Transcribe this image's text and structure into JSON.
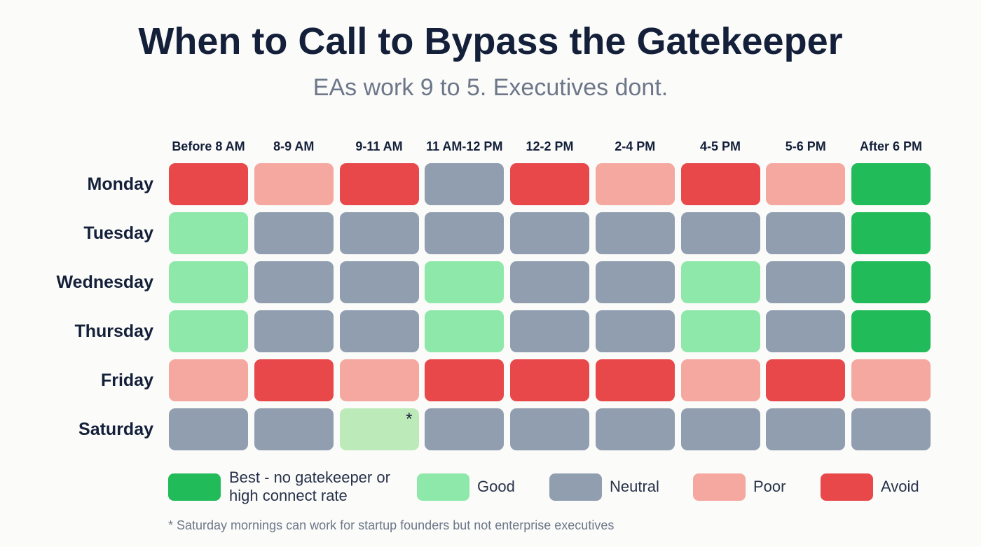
{
  "title": "When to Call to Bypass the Gatekeeper",
  "subtitle": "EAs work 9 to 5. Executives dont.",
  "columns": [
    "Before 8 AM",
    "8-9 AM",
    "9-11 AM",
    "11 AM-12 PM",
    "12-2 PM",
    "2-4 PM",
    "4-5 PM",
    "5-6 PM",
    "After 6 PM"
  ],
  "rows": [
    {
      "label": "Monday",
      "cells": [
        "#e8484a",
        "#f5a8a0",
        "#e8484a",
        "#909eb0",
        "#e8484a",
        "#f5a8a0",
        "#e8484a",
        "#f5a8a0",
        "#22bb5a"
      ]
    },
    {
      "label": "Tuesday",
      "cells": [
        "#8ee8aa",
        "#909eb0",
        "#909eb0",
        "#909eb0",
        "#909eb0",
        "#909eb0",
        "#909eb0",
        "#909eb0",
        "#22bb5a"
      ]
    },
    {
      "label": "Wednesday",
      "cells": [
        "#8ee8aa",
        "#909eb0",
        "#909eb0",
        "#8ee8aa",
        "#909eb0",
        "#909eb0",
        "#8ee8aa",
        "#909eb0",
        "#22bb5a"
      ]
    },
    {
      "label": "Thursday",
      "cells": [
        "#8ee8aa",
        "#909eb0",
        "#909eb0",
        "#8ee8aa",
        "#909eb0",
        "#909eb0",
        "#8ee8aa",
        "#909eb0",
        "#22bb5a"
      ]
    },
    {
      "label": "Friday",
      "cells": [
        "#f5a8a0",
        "#e8484a",
        "#f5a8a0",
        "#e8484a",
        "#e8484a",
        "#e8484a",
        "#f5a8a0",
        "#e8484a",
        "#f5a8a0"
      ]
    },
    {
      "label": "Saturday",
      "cells": [
        "#909eb0",
        "#909eb0",
        {
          "color": "#bdeab9",
          "note": "*"
        },
        "#909eb0",
        "#909eb0",
        "#909eb0",
        "#909eb0",
        "#909eb0",
        "#909eb0"
      ]
    }
  ],
  "legend": [
    {
      "name": "Best - no gatekeeper or high connect rate",
      "color": "#22bb5a"
    },
    {
      "name": "Good",
      "color": "#8ee8aa"
    },
    {
      "name": "Neutral",
      "color": "#909eb0"
    },
    {
      "name": "Poor",
      "color": "#f5a8a0"
    },
    {
      "name": "Avoid",
      "color": "#e8484a"
    }
  ],
  "footnote": "* Saturday mornings can work for startup founders but not enterprise executives"
}
